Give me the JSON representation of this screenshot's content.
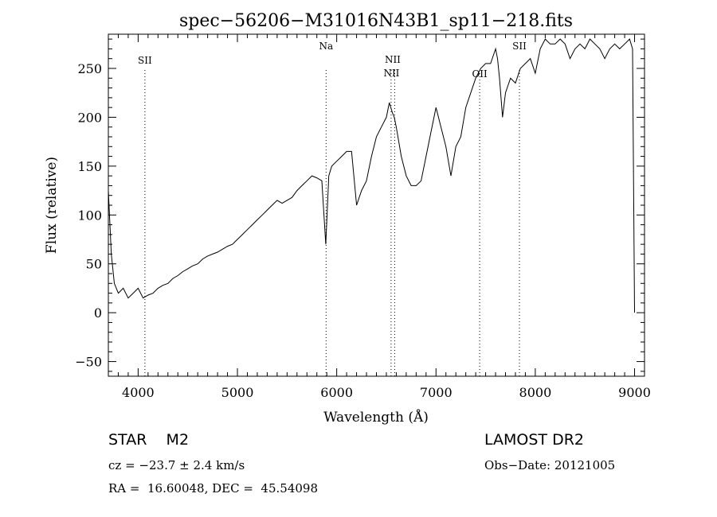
{
  "chart_data": {
    "type": "line",
    "title": "spec−56206−M31016N43B1_sp11−218.fits",
    "xlabel": "Wavelength (Å)",
    "ylabel": "Flux (relative)",
    "xlim": [
      3700,
      9100
    ],
    "ylim": [
      -65,
      285
    ],
    "xticks": [
      4000,
      5000,
      6000,
      7000,
      8000,
      9000
    ],
    "xtick_labels": [
      "4000",
      "5000",
      "6000",
      "7000",
      "8000",
      "9000"
    ],
    "yticks": [
      -50,
      0,
      50,
      100,
      150,
      200,
      250
    ],
    "ytick_labels": [
      "−50",
      "0",
      "50",
      "100",
      "150",
      "200",
      "250"
    ],
    "grid": false,
    "series": [
      {
        "x": [
          3700,
          3730,
          3760,
          3800,
          3850,
          3900,
          3950,
          4000,
          4050,
          4100,
          4150,
          4200,
          4250,
          4300,
          4350,
          4400,
          4450,
          4500,
          4550,
          4600,
          4650,
          4700,
          4750,
          4800,
          4850,
          4900,
          4950,
          5000,
          5050,
          5100,
          5150,
          5200,
          5250,
          5300,
          5350,
          5400,
          5450,
          5500,
          5550,
          5600,
          5650,
          5700,
          5750,
          5800,
          5850,
          5890,
          5920,
          5950,
          6000,
          6050,
          6100,
          6150,
          6200,
          6250,
          6300,
          6350,
          6400,
          6450,
          6500,
          6530,
          6560,
          6580,
          6600,
          6650,
          6700,
          6750,
          6800,
          6850,
          6900,
          6950,
          7000,
          7050,
          7100,
          7150,
          7200,
          7250,
          7300,
          7350,
          7400,
          7450,
          7500,
          7550,
          7600,
          7620,
          7640,
          7670,
          7700,
          7750,
          7800,
          7850,
          7900,
          7950,
          8000,
          8050,
          8100,
          8150,
          8200,
          8250,
          8300,
          8350,
          8400,
          8450,
          8500,
          8550,
          8600,
          8650,
          8700,
          8750,
          8800,
          8850,
          8900,
          8950,
          8980,
          9000
        ],
        "y": [
          125,
          60,
          30,
          20,
          25,
          15,
          20,
          25,
          15,
          18,
          20,
          25,
          28,
          30,
          35,
          38,
          42,
          45,
          48,
          50,
          55,
          58,
          60,
          62,
          65,
          68,
          70,
          75,
          80,
          85,
          90,
          95,
          100,
          105,
          110,
          115,
          112,
          115,
          118,
          125,
          130,
          135,
          140,
          138,
          135,
          70,
          140,
          150,
          155,
          160,
          165,
          165,
          110,
          125,
          135,
          160,
          180,
          190,
          200,
          215,
          205,
          200,
          190,
          160,
          140,
          130,
          130,
          135,
          160,
          185,
          210,
          190,
          170,
          140,
          170,
          180,
          210,
          225,
          240,
          250,
          255,
          255,
          270,
          260,
          240,
          200,
          225,
          240,
          235,
          250,
          255,
          260,
          245,
          270,
          280,
          275,
          275,
          280,
          275,
          260,
          270,
          275,
          270,
          280,
          275,
          270,
          260,
          270,
          275,
          270,
          275,
          280,
          270,
          0
        ]
      }
    ],
    "lines": [
      {
        "label": "SII",
        "x": 4068
      },
      {
        "label": "Na",
        "x": 5893
      },
      {
        "label": "NII",
        "x": 6548
      },
      {
        "label": "NII",
        "x": 6584
      },
      {
        "label": "OII",
        "x": 7440
      },
      {
        "label": "SII",
        "x": 7840
      }
    ]
  },
  "footer": {
    "object": "STAR    M2",
    "survey": "LAMOST DR2",
    "cz": "cz = −23.7 ± 2.4 km/s",
    "obs_date": "Obs−Date: 20121005",
    "coords": "RA =  16.60048, DEC =  45.54098"
  }
}
